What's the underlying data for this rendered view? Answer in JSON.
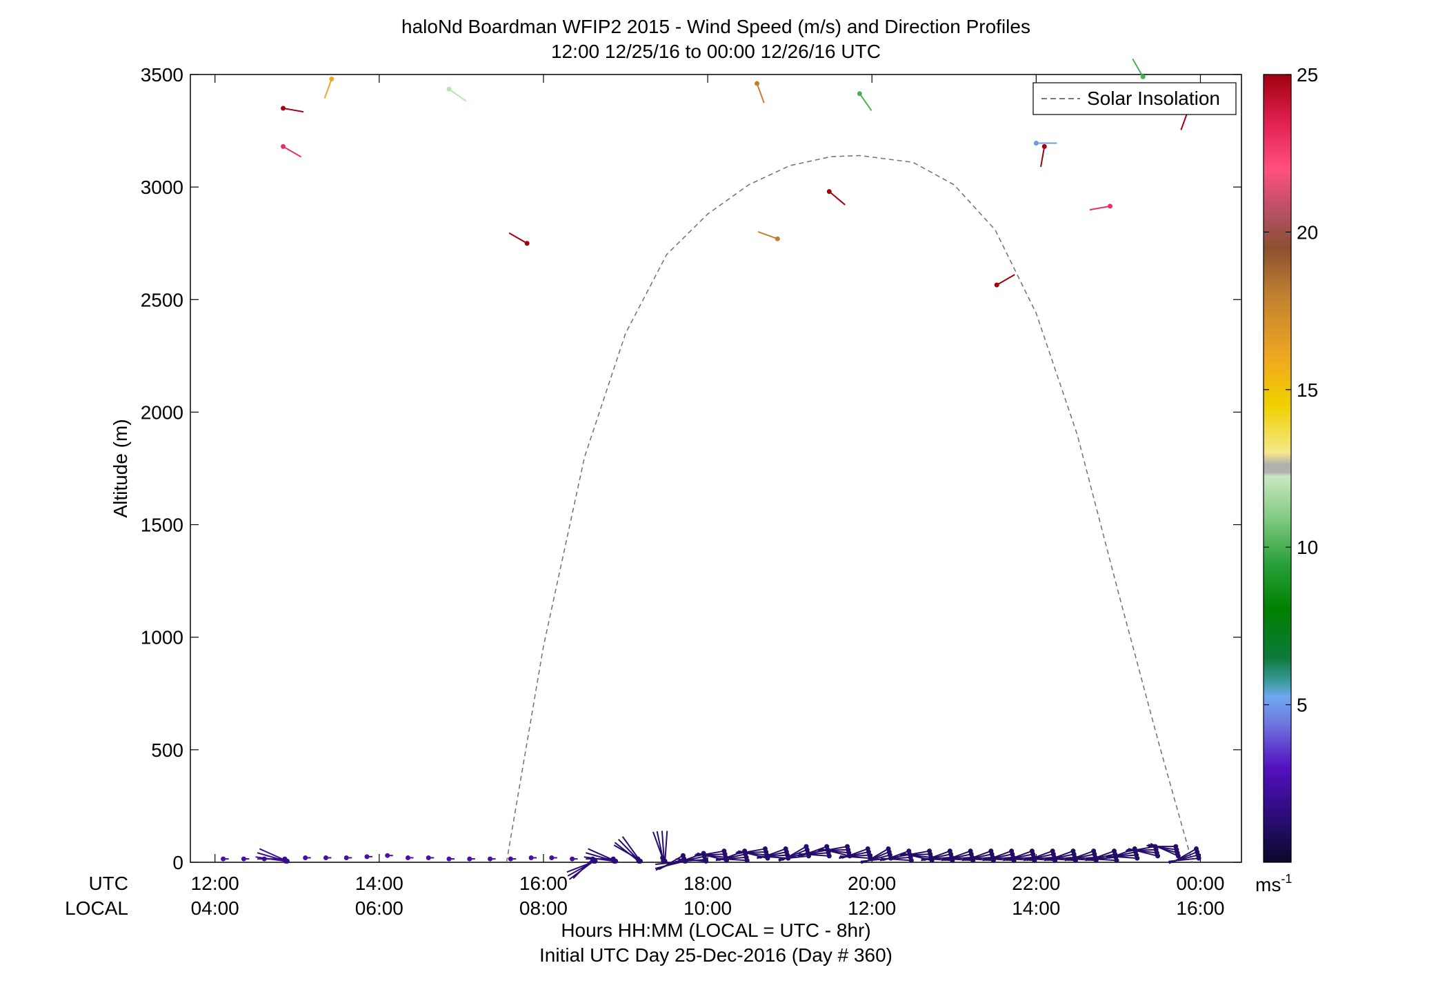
{
  "chart_data": {
    "type": "scatter",
    "title": "haloNd Boardman WFIP2 2015 - Wind Speed (m/s) and Direction Profiles",
    "subtitle": "12:00 12/25/16 to 00:00 12/26/16  UTC",
    "ylabel": "Altitude (m)",
    "xlabel": "Hours HH:MM  (LOCAL = UTC - 8hr)",
    "xlabel2": "Initial UTC Day 25-Dec-2016 (Day # 360)",
    "x_row_labels": [
      "UTC",
      "LOCAL"
    ],
    "xlim": [
      11.7,
      24.5
    ],
    "ylim": [
      0,
      3500
    ],
    "x_ticks": [
      {
        "x": 12,
        "utc": "12:00",
        "local": "04:00"
      },
      {
        "x": 14,
        "utc": "14:00",
        "local": "06:00"
      },
      {
        "x": 16,
        "utc": "16:00",
        "local": "08:00"
      },
      {
        "x": 18,
        "utc": "18:00",
        "local": "10:00"
      },
      {
        "x": 20,
        "utc": "20:00",
        "local": "12:00"
      },
      {
        "x": 22,
        "utc": "22:00",
        "local": "14:00"
      },
      {
        "x": 24,
        "utc": "00:00",
        "local": "16:00"
      }
    ],
    "y_ticks": [
      "0",
      "500",
      "1000",
      "1500",
      "2000",
      "2500",
      "3000",
      "3500"
    ],
    "legend": {
      "entries": [
        "Solar Insolation"
      ],
      "placement": "top-right"
    },
    "colorbar": {
      "range": [
        0,
        25
      ],
      "ticks": [
        "5",
        "10",
        "15",
        "20",
        "25"
      ],
      "unit": "ms",
      "unit_exp": "-1"
    },
    "solar_insolation": {
      "line_style": "dashed",
      "color": "#777777",
      "points": [
        {
          "x": 15.55,
          "y": 0
        },
        {
          "x": 16.0,
          "y": 960
        },
        {
          "x": 16.5,
          "y": 1800
        },
        {
          "x": 17.0,
          "y": 2350
        },
        {
          "x": 17.5,
          "y": 2700
        },
        {
          "x": 18.0,
          "y": 2880
        },
        {
          "x": 18.5,
          "y": 3010
        },
        {
          "x": 19.0,
          "y": 3095
        },
        {
          "x": 19.5,
          "y": 3135
        },
        {
          "x": 19.85,
          "y": 3140
        },
        {
          "x": 20.5,
          "y": 3110
        },
        {
          "x": 21.0,
          "y": 3010
        },
        {
          "x": 21.5,
          "y": 2810
        },
        {
          "x": 22.0,
          "y": 2440
        },
        {
          "x": 22.5,
          "y": 1900
        },
        {
          "x": 23.0,
          "y": 1200
        },
        {
          "x": 23.5,
          "y": 520
        },
        {
          "x": 23.9,
          "y": 0
        }
      ]
    },
    "wind_points": [
      {
        "x": 12.83,
        "y": 3350,
        "speed": 25,
        "dir": 100
      },
      {
        "x": 12.83,
        "y": 3180,
        "speed": 23,
        "dir": 120
      },
      {
        "x": 13.42,
        "y": 3480,
        "speed": 16,
        "dir": 200
      },
      {
        "x": 14.85,
        "y": 3435,
        "speed": 12,
        "dir": 125
      },
      {
        "x": 15.8,
        "y": 2750,
        "speed": 25,
        "dir": 300
      },
      {
        "x": 18.6,
        "y": 3460,
        "speed": 18,
        "dir": 160
      },
      {
        "x": 18.85,
        "y": 2770,
        "speed": 18,
        "dir": 290
      },
      {
        "x": 19.48,
        "y": 2980,
        "speed": 25,
        "dir": 130
      },
      {
        "x": 19.85,
        "y": 3415,
        "speed": 10,
        "dir": 145
      },
      {
        "x": 21.52,
        "y": 2565,
        "speed": 25,
        "dir": 60
      },
      {
        "x": 22.0,
        "y": 3195,
        "speed": 5,
        "dir": 90
      },
      {
        "x": 22.1,
        "y": 3180,
        "speed": 25,
        "dir": 190
      },
      {
        "x": 22.9,
        "y": 2915,
        "speed": 23,
        "dir": 260
      },
      {
        "x": 23.3,
        "y": 3490,
        "speed": 10,
        "dir": 330
      },
      {
        "x": 23.85,
        "y": 3340,
        "speed": 25,
        "dir": 200
      }
    ],
    "surface_profiles": [
      {
        "x": 12.1,
        "y": 15,
        "speed": 2.5,
        "dir": 90
      },
      {
        "x": 12.35,
        "y": 15,
        "speed": 2.5,
        "dir": 90
      },
      {
        "x": 12.6,
        "y": 15,
        "speed": 2.3,
        "dir": 90
      },
      {
        "x": 12.85,
        "y": 15,
        "speed": 2.0,
        "dir": 270
      },
      {
        "x": 13.1,
        "y": 20,
        "speed": 2.5,
        "dir": 90
      },
      {
        "x": 13.35,
        "y": 20,
        "speed": 2.5,
        "dir": 90
      },
      {
        "x": 13.6,
        "y": 20,
        "speed": 2.6,
        "dir": 90
      },
      {
        "x": 13.85,
        "y": 25,
        "speed": 2.6,
        "dir": 90
      },
      {
        "x": 14.1,
        "y": 30,
        "speed": 2.7,
        "dir": 90
      },
      {
        "x": 14.35,
        "y": 20,
        "speed": 2.6,
        "dir": 90
      },
      {
        "x": 14.6,
        "y": 20,
        "speed": 2.6,
        "dir": 90
      },
      {
        "x": 14.85,
        "y": 15,
        "speed": 2.5,
        "dir": 90
      },
      {
        "x": 15.1,
        "y": 15,
        "speed": 2.5,
        "dir": 90
      },
      {
        "x": 15.35,
        "y": 15,
        "speed": 2.5,
        "dir": 90
      },
      {
        "x": 15.6,
        "y": 15,
        "speed": 2.4,
        "dir": 90
      },
      {
        "x": 15.85,
        "y": 20,
        "speed": 2.5,
        "dir": 90
      },
      {
        "x": 16.1,
        "y": 20,
        "speed": 2.4,
        "dir": 90
      },
      {
        "x": 16.35,
        "y": 15,
        "speed": 2.3,
        "dir": 90
      },
      {
        "x": 16.6,
        "y": 15,
        "speed": 1.5,
        "dir": 225
      },
      {
        "x": 16.85,
        "y": 15,
        "speed": 1.5,
        "dir": 270
      },
      {
        "x": 17.15,
        "y": 15,
        "speed": 1.3,
        "dir": 300
      },
      {
        "x": 17.45,
        "y": 20,
        "speed": 1.3,
        "dir": 340
      },
      {
        "x": 17.7,
        "y": 30,
        "speed": 1.2,
        "dir": 240
      },
      {
        "x": 17.95,
        "y": 40,
        "speed": 1.2,
        "dir": 250
      },
      {
        "x": 18.2,
        "y": 50,
        "speed": 1.2,
        "dir": 260
      },
      {
        "x": 18.45,
        "y": 50,
        "speed": 1.2,
        "dir": 250
      },
      {
        "x": 18.7,
        "y": 60,
        "speed": 1.2,
        "dir": 260
      },
      {
        "x": 18.95,
        "y": 60,
        "speed": 1.2,
        "dir": 250
      },
      {
        "x": 19.2,
        "y": 70,
        "speed": 1.3,
        "dir": 240
      },
      {
        "x": 19.45,
        "y": 70,
        "speed": 1.2,
        "dir": 250
      },
      {
        "x": 19.7,
        "y": 70,
        "speed": 1.2,
        "dir": 260
      },
      {
        "x": 19.95,
        "y": 60,
        "speed": 1.2,
        "dir": 250
      },
      {
        "x": 20.2,
        "y": 60,
        "speed": 1.2,
        "dir": 240
      },
      {
        "x": 20.45,
        "y": 50,
        "speed": 1.2,
        "dir": 250
      },
      {
        "x": 20.7,
        "y": 50,
        "speed": 1.1,
        "dir": 260
      },
      {
        "x": 20.95,
        "y": 50,
        "speed": 1.1,
        "dir": 250
      },
      {
        "x": 21.2,
        "y": 50,
        "speed": 1.1,
        "dir": 250
      },
      {
        "x": 21.45,
        "y": 50,
        "speed": 1.1,
        "dir": 250
      },
      {
        "x": 21.7,
        "y": 50,
        "speed": 1.1,
        "dir": 250
      },
      {
        "x": 21.95,
        "y": 50,
        "speed": 1.1,
        "dir": 250
      },
      {
        "x": 22.2,
        "y": 50,
        "speed": 1.1,
        "dir": 250
      },
      {
        "x": 22.45,
        "y": 50,
        "speed": 1.1,
        "dir": 250
      },
      {
        "x": 22.7,
        "y": 50,
        "speed": 1.1,
        "dir": 250
      },
      {
        "x": 22.95,
        "y": 50,
        "speed": 1.1,
        "dir": 250
      },
      {
        "x": 23.2,
        "y": 60,
        "speed": 1.1,
        "dir": 250
      },
      {
        "x": 23.45,
        "y": 70,
        "speed": 1.2,
        "dir": 260
      },
      {
        "x": 23.7,
        "y": 70,
        "speed": 1.2,
        "dir": 270
      },
      {
        "x": 23.95,
        "y": 60,
        "speed": 1.2,
        "dir": 240
      }
    ]
  }
}
